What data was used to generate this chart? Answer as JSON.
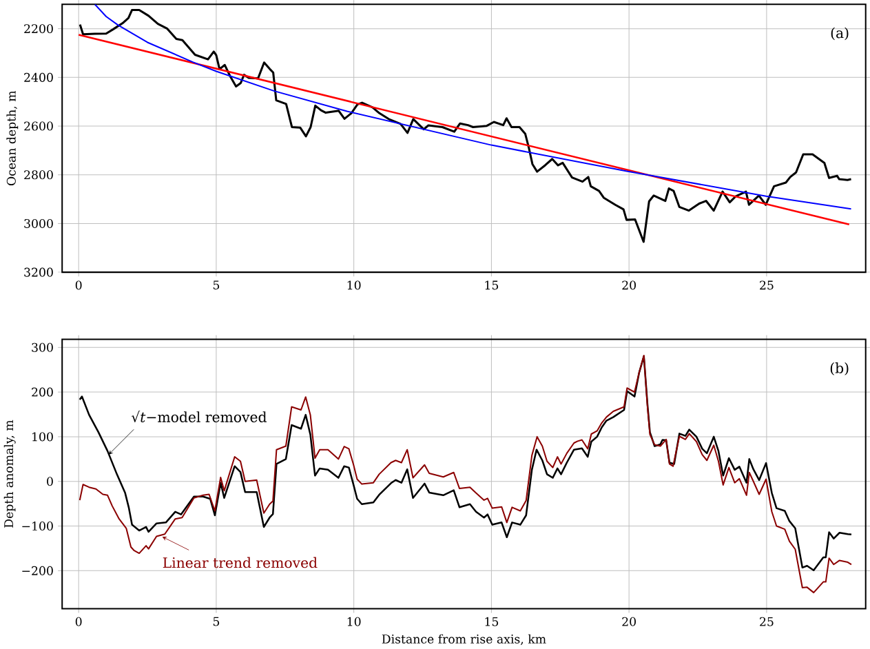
{
  "chart_data": [
    {
      "type": "line",
      "ylabel": "Ocean depth, m",
      "xlim": [
        -0.6,
        28.6
      ],
      "ylim": [
        3200,
        2100
      ],
      "xticks": [
        0,
        5,
        10,
        15,
        20,
        25
      ],
      "yticks": [
        2200,
        2400,
        2600,
        2800,
        3000,
        3200
      ],
      "grid": true,
      "annotations": [
        "(a)"
      ],
      "series": [
        {
          "color": "#000000",
          "x": [
            0.05,
            0.16,
            0.59,
            1.0,
            1.26,
            1.6,
            1.81,
            1.94,
            2.2,
            2.54,
            2.88,
            3.21,
            3.55,
            3.77,
            4.23,
            4.7,
            4.91,
            5.0,
            5.12,
            5.31,
            5.5,
            5.72,
            5.89,
            6.01,
            6.18,
            6.52,
            6.74,
            6.95,
            7.07,
            7.18,
            7.54,
            7.75,
            8.05,
            8.26,
            8.43,
            8.6,
            8.81,
            8.98,
            9.45,
            9.66,
            9.91,
            10.13,
            10.3,
            10.68,
            10.93,
            11.27,
            11.7,
            11.95,
            12.16,
            12.54,
            12.71,
            13.22,
            13.65,
            13.86,
            14.15,
            14.33,
            14.83,
            15.09,
            15.43,
            15.55,
            15.73,
            16.02,
            16.23,
            16.36,
            16.49,
            16.66,
            16.95,
            17.21,
            17.42,
            17.59,
            17.93,
            18.31,
            18.52,
            18.61,
            18.91,
            19.08,
            19.5,
            19.8,
            19.91,
            20.22,
            20.53,
            20.73,
            20.9,
            21.32,
            21.45,
            21.62,
            21.83,
            22.17,
            22.55,
            22.8,
            23.08,
            23.4,
            23.66,
            23.87,
            24.25,
            24.36,
            24.72,
            24.97,
            25.27,
            25.7,
            25.86,
            26.07,
            26.33,
            26.67,
            27.1,
            27.27,
            27.56,
            27.64,
            27.94,
            28.07
          ],
          "values": [
            2183,
            2223,
            2221,
            2220,
            2202,
            2177,
            2156,
            2123,
            2123,
            2147,
            2180,
            2199,
            2242,
            2247,
            2307,
            2326,
            2294,
            2309,
            2366,
            2349,
            2394,
            2437,
            2423,
            2389,
            2402,
            2404,
            2339,
            2366,
            2380,
            2494,
            2509,
            2604,
            2606,
            2642,
            2604,
            2516,
            2535,
            2545,
            2537,
            2570,
            2547,
            2511,
            2504,
            2523,
            2547,
            2571,
            2591,
            2628,
            2571,
            2613,
            2597,
            2604,
            2623,
            2589,
            2596,
            2604,
            2599,
            2583,
            2596,
            2568,
            2604,
            2604,
            2632,
            2689,
            2756,
            2787,
            2761,
            2735,
            2761,
            2751,
            2811,
            2828,
            2809,
            2847,
            2866,
            2894,
            2923,
            2942,
            2985,
            2983,
            3075,
            2909,
            2885,
            2907,
            2856,
            2866,
            2932,
            2947,
            2918,
            2907,
            2947,
            2869,
            2913,
            2889,
            2869,
            2923,
            2885,
            2923,
            2847,
            2832,
            2809,
            2790,
            2716,
            2716,
            2751,
            2813,
            2804,
            2818,
            2821,
            2818
          ]
        },
        {
          "color": "#ff0000",
          "x": [
            0,
            28
          ],
          "values": [
            2225,
            3004
          ]
        },
        {
          "color": "#0000ff",
          "x": [
            0.59,
            1.0,
            1.43,
            2.5,
            4.15,
            5.0,
            7.11,
            9.75,
            15.0,
            19.92,
            24.98,
            28.07
          ],
          "values": [
            2100,
            2150,
            2185,
            2256,
            2337,
            2375,
            2456,
            2539,
            2678,
            2785,
            2888,
            2940
          ]
        }
      ]
    },
    {
      "type": "line",
      "xlabel": "Distance from rise axis, km",
      "ylabel": "Depth anomaly, m",
      "xlim": [
        -0.6,
        28.6
      ],
      "ylim": [
        -285,
        318
      ],
      "xticks": [
        0,
        5,
        10,
        15,
        20,
        25
      ],
      "yticks": [
        {
          "value": -200,
          "label": "−200"
        },
        {
          "value": -100,
          "label": "−100"
        },
        0,
        100,
        200,
        300
      ],
      "grid": true,
      "annotations": [
        {
          "text": "√*t*−model removed",
          "x": 1.09,
          "y": 60
        },
        {
          "text": "Linear trend removed",
          "x": 3.04,
          "y": -124
        },
        "(b)"
      ],
      "series": [
        {
          "color": "#000000",
          "x": [
            0.04,
            0.12,
            0.38,
            0.72,
            1.05,
            1.39,
            1.69,
            1.82,
            1.94,
            2.2,
            2.45,
            2.54,
            2.83,
            3.17,
            3.51,
            3.72,
            4.19,
            4.52,
            4.78,
            4.95,
            5.16,
            5.29,
            5.67,
            5.88,
            6.05,
            6.47,
            6.73,
            6.94,
            7.06,
            7.19,
            7.53,
            7.74,
            8.08,
            8.25,
            8.42,
            8.59,
            8.76,
            9.06,
            9.44,
            9.65,
            9.82,
            9.99,
            10.12,
            10.29,
            10.71,
            10.92,
            11.35,
            11.52,
            11.73,
            11.94,
            12.15,
            12.57,
            12.74,
            13.25,
            13.63,
            13.84,
            14.22,
            14.44,
            14.73,
            14.86,
            15.03,
            15.37,
            15.56,
            15.75,
            16.05,
            16.26,
            16.47,
            16.64,
            16.85,
            17.02,
            17.23,
            17.4,
            17.53,
            17.74,
            18.0,
            18.29,
            18.5,
            18.63,
            18.84,
            19.01,
            19.18,
            19.43,
            19.82,
            19.93,
            20.2,
            20.37,
            20.54,
            20.67,
            20.76,
            20.93,
            21.14,
            21.22,
            21.35,
            21.47,
            21.64,
            21.83,
            22.05,
            22.19,
            22.45,
            22.66,
            22.83,
            23.08,
            23.25,
            23.42,
            23.63,
            23.84,
            24.01,
            24.27,
            24.37,
            24.52,
            24.73,
            24.98,
            25.19,
            25.36,
            25.66,
            25.83,
            26.04,
            26.3,
            26.47,
            26.71,
            27.06,
            27.15,
            27.27,
            27.44,
            27.65,
            27.95,
            28.08
          ],
          "values": [
            183,
            190,
            149,
            110,
            68,
            16,
            -26,
            -58,
            -97,
            -110,
            -102,
            -113,
            -94,
            -92,
            -68,
            -74,
            -34,
            -34,
            -39,
            -76,
            -3,
            -37,
            34,
            21,
            -24,
            -24,
            -102,
            -81,
            -73,
            39,
            50,
            126,
            118,
            149,
            105,
            13,
            29,
            26,
            8,
            34,
            31,
            -8,
            -39,
            -51,
            -47,
            -30,
            -4,
            3,
            -3,
            27,
            -37,
            -5,
            -25,
            -31,
            -20,
            -58,
            -51,
            -68,
            -81,
            -74,
            -97,
            -92,
            -125,
            -92,
            -97,
            -76,
            26,
            71,
            47,
            16,
            8,
            29,
            16,
            42,
            71,
            74,
            55,
            89,
            100,
            121,
            136,
            144,
            160,
            202,
            190,
            244,
            280,
            173,
            110,
            79,
            83,
            93,
            92,
            42,
            39,
            107,
            102,
            116,
            100,
            73,
            63,
            100,
            68,
            13,
            52,
            26,
            33,
            -3,
            50,
            27,
            3,
            41,
            -26,
            -60,
            -66,
            -89,
            -105,
            -193,
            -189,
            -199,
            -170,
            -170,
            -114,
            -128,
            -115,
            -118,
            -119
          ]
        },
        {
          "color": "#8b0000",
          "x": [
            0.04,
            0.16,
            0.38,
            0.63,
            0.88,
            1.05,
            1.22,
            1.47,
            1.73,
            1.9,
            2.02,
            2.2,
            2.45,
            2.54,
            2.83,
            3.13,
            3.51,
            3.76,
            4.19,
            4.52,
            4.74,
            4.95,
            5.16,
            5.29,
            5.67,
            5.88,
            6.05,
            6.47,
            6.73,
            6.94,
            7.06,
            7.19,
            7.53,
            7.74,
            8.08,
            8.25,
            8.42,
            8.59,
            8.76,
            9.06,
            9.44,
            9.65,
            9.82,
            9.99,
            10.12,
            10.29,
            10.71,
            10.92,
            11.35,
            11.52,
            11.73,
            11.94,
            12.15,
            12.57,
            12.74,
            13.25,
            13.63,
            13.84,
            14.22,
            14.44,
            14.73,
            14.86,
            15.03,
            15.37,
            15.56,
            15.75,
            16.05,
            16.26,
            16.47,
            16.66,
            16.85,
            17.02,
            17.23,
            17.4,
            17.53,
            17.74,
            18.0,
            18.13,
            18.29,
            18.5,
            18.63,
            18.84,
            19.01,
            19.18,
            19.43,
            19.82,
            19.93,
            20.2,
            20.37,
            20.54,
            20.67,
            20.76,
            20.93,
            21.14,
            21.35,
            21.47,
            21.6,
            21.83,
            22.05,
            22.19,
            22.45,
            22.66,
            22.83,
            23.08,
            23.25,
            23.42,
            23.63,
            23.84,
            24.01,
            24.27,
            24.37,
            24.52,
            24.73,
            24.98,
            25.19,
            25.36,
            25.66,
            25.83,
            26.04,
            26.3,
            26.47,
            26.71,
            27.06,
            27.15,
            27.27,
            27.44,
            27.65,
            27.95,
            28.08
          ],
          "values": [
            -42,
            -7,
            -13,
            -17,
            -29,
            -31,
            -55,
            -84,
            -105,
            -147,
            -155,
            -161,
            -144,
            -151,
            -123,
            -118,
            -84,
            -81,
            -37,
            -31,
            -29,
            -66,
            9,
            -21,
            55,
            45,
            0,
            3,
            -71,
            -51,
            -44,
            71,
            79,
            167,
            160,
            189,
            149,
            52,
            71,
            71,
            50,
            78,
            73,
            37,
            5,
            -6,
            -3,
            16,
            42,
            47,
            42,
            71,
            8,
            37,
            18,
            10,
            20,
            -16,
            -13,
            -26,
            -42,
            -38,
            -60,
            -57,
            -92,
            -58,
            -66,
            -43,
            58,
            100,
            79,
            45,
            31,
            55,
            39,
            63,
            86,
            90,
            93,
            73,
            106,
            113,
            131,
            144,
            157,
            167,
            209,
            200,
            244,
            282,
            168,
            105,
            82,
            79,
            94,
            39,
            34,
            101,
            94,
            107,
            89,
            60,
            47,
            81,
            45,
            -8,
            31,
            -3,
            6,
            -31,
            20,
            0,
            -29,
            5,
            -68,
            -100,
            -107,
            -134,
            -152,
            -238,
            -237,
            -249,
            -225,
            -225,
            -172,
            -186,
            -177,
            -181,
            -186
          ]
        }
      ]
    }
  ]
}
